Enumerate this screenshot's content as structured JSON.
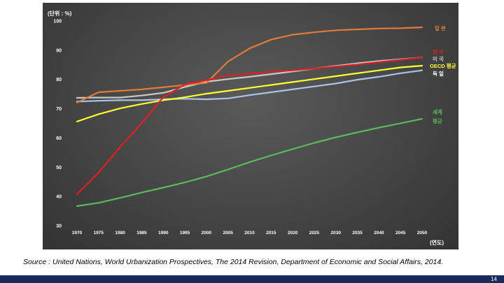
{
  "chart_data": {
    "type": "line",
    "unit_label": "(단위 : %)",
    "xlabel": "(연도)",
    "x": [
      1970,
      1975,
      1980,
      1985,
      1990,
      1995,
      2000,
      2005,
      2010,
      2015,
      2020,
      2025,
      2030,
      2035,
      2040,
      2045,
      2050
    ],
    "ylim": [
      30,
      100
    ],
    "yticks": [
      30,
      40,
      50,
      60,
      70,
      80,
      90,
      100
    ],
    "grid": false,
    "series": [
      {
        "name": "일 본",
        "color": "#e07b3a",
        "values": [
          72.0,
          75.5,
          76.0,
          76.5,
          77.2,
          78.0,
          78.7,
          86.0,
          90.5,
          93.5,
          95.2,
          96.0,
          96.7,
          97.0,
          97.3,
          97.4,
          97.7
        ]
      },
      {
        "name": "한 국",
        "color": "#e02020",
        "values": [
          40.7,
          48.0,
          56.8,
          64.9,
          73.8,
          78.2,
          79.6,
          81.3,
          81.9,
          82.5,
          83.0,
          83.6,
          84.3,
          85.0,
          85.8,
          86.6,
          87.4
        ]
      },
      {
        "name": "미 국",
        "color": "#c8c8c8",
        "values": [
          73.6,
          73.7,
          73.7,
          74.4,
          75.3,
          77.3,
          79.1,
          80.0,
          80.8,
          81.7,
          82.6,
          83.6,
          84.5,
          85.4,
          86.2,
          86.8,
          87.4
        ]
      },
      {
        "name": "OECD 평균",
        "color": "#ffff33",
        "values": [
          65.5,
          68.0,
          70.0,
          71.5,
          72.8,
          73.8,
          75.0,
          76.0,
          77.0,
          78.0,
          79.0,
          80.0,
          81.0,
          82.0,
          83.0,
          84.0,
          84.6
        ]
      },
      {
        "name": "독 일",
        "color": "#a8c4e6",
        "values": [
          72.3,
          72.6,
          72.8,
          72.8,
          73.1,
          73.3,
          73.1,
          73.4,
          74.5,
          75.5,
          76.5,
          77.5,
          78.5,
          79.8,
          80.8,
          82.0,
          83.0
        ]
      },
      {
        "name": "세계 평균",
        "color": "#5cb85c",
        "values": [
          36.6,
          37.7,
          39.4,
          41.2,
          42.9,
          44.7,
          46.7,
          49.1,
          51.6,
          53.9,
          56.1,
          58.2,
          60.1,
          61.8,
          63.4,
          64.9,
          66.4
        ]
      }
    ]
  },
  "legend_labels": [
    {
      "text": "일 본",
      "color": "#e07b3a"
    },
    {
      "text": "한 국",
      "color": "#e02020"
    },
    {
      "text": "미 국",
      "color": "#c8c8c8"
    },
    {
      "text": "OECD 평균",
      "color": "#ffff33"
    },
    {
      "text": "독 일",
      "color": "#ffffff"
    },
    {
      "text": "세계",
      "color": "#5cb85c"
    },
    {
      "text": "평균",
      "color": "#5cb85c"
    }
  ],
  "source": "Source : United Nations, World Urbanization Prospectives, The 2014 Revision, Department of Economic and Social Affairs, 2014.",
  "page_number": "14"
}
